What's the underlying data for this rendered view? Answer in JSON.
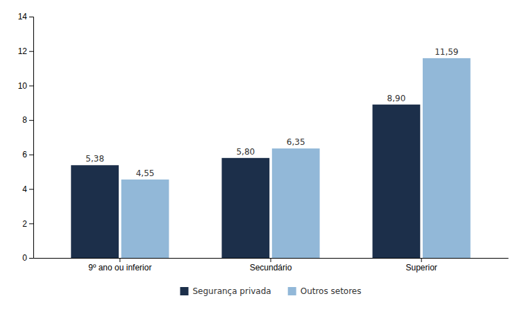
{
  "chart_data": {
    "type": "bar",
    "categories": [
      "9º ano ou inferior",
      "Secundário",
      "Superior"
    ],
    "series": [
      {
        "name": "Segurança privada",
        "color": "#1c2f4a",
        "values": [
          5.38,
          5.8,
          8.9
        ],
        "value_labels": [
          "5,38",
          "5,80",
          "8,90"
        ]
      },
      {
        "name": "Outros setores",
        "color": "#92b8d8",
        "values": [
          4.55,
          6.35,
          11.59
        ],
        "value_labels": [
          "4,55",
          "6,35",
          "11,59"
        ]
      }
    ],
    "ylim": [
      0,
      14
    ],
    "yticks": [
      0,
      2,
      4,
      6,
      8,
      10,
      12,
      14
    ],
    "grid": false,
    "legend": "bottom",
    "data_labels": true
  }
}
